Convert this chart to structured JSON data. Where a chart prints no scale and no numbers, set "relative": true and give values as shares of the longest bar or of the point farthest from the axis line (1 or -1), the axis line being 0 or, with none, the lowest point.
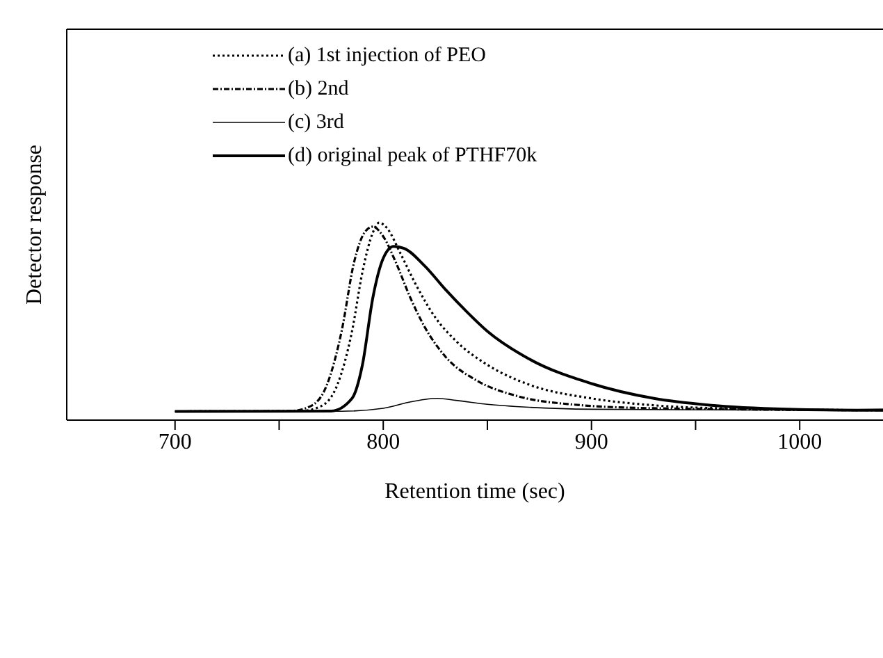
{
  "chart_data": {
    "type": "line",
    "relative": true,
    "xlabel": "Retention time (sec)",
    "ylabel": "Detector response",
    "xlim": [
      648,
      1040
    ],
    "xticks": [
      700,
      {
        "value": 750,
        "label": null
      },
      800,
      {
        "value": 850,
        "label": null
      },
      900,
      {
        "value": 950,
        "label": null
      },
      1000
    ],
    "legend": "top left",
    "tick_labels": "x",
    "series": [
      {
        "name": "(a) 1st injection of PEO",
        "color": "#000000",
        "line_style": "dotted",
        "x": [
          700,
          760,
          770,
          778,
          785,
          790,
          795,
          798,
          802,
          808,
          815,
          825,
          835,
          850,
          870,
          900,
          930,
          970,
          1040
        ],
        "values": [
          0.044,
          0.046,
          0.07,
          0.18,
          0.45,
          0.75,
          0.95,
          1.0,
          0.97,
          0.85,
          0.7,
          0.52,
          0.4,
          0.28,
          0.18,
          0.11,
          0.075,
          0.058,
          0.05
        ]
      },
      {
        "name": "(b) 2nd",
        "color": "#000000",
        "line_style": "dashed",
        "x": [
          700,
          755,
          765,
          773,
          780,
          786,
          791,
          795,
          800,
          806,
          813,
          820,
          830,
          845,
          865,
          890,
          930,
          1040
        ],
        "values": [
          0.044,
          0.046,
          0.07,
          0.18,
          0.45,
          0.8,
          0.95,
          0.98,
          0.93,
          0.8,
          0.62,
          0.47,
          0.32,
          0.2,
          0.12,
          0.08,
          0.06,
          0.05
        ]
      },
      {
        "name": "(c) 3rd",
        "color": "#000000",
        "line_style": "solid",
        "x": [
          700,
          780,
          800,
          812,
          820,
          826,
          835,
          850,
          870,
          900,
          1000,
          1040
        ],
        "values": [
          0.044,
          0.045,
          0.06,
          0.09,
          0.105,
          0.11,
          0.1,
          0.08,
          0.065,
          0.055,
          0.05,
          0.055
        ]
      },
      {
        "name": "(d) original peak of PTHF70k",
        "color": "#000000",
        "line_style": "solid",
        "x": [
          700,
          775,
          785,
          790,
          795,
          800,
          805,
          810,
          820,
          830,
          840,
          850,
          870,
          900,
          930,
          960,
          1000,
          1040
        ],
        "values": [
          0.044,
          0.046,
          0.11,
          0.28,
          0.62,
          0.82,
          0.88,
          0.87,
          0.78,
          0.66,
          0.55,
          0.45,
          0.31,
          0.185,
          0.11,
          0.073,
          0.054,
          0.05
        ]
      }
    ]
  }
}
